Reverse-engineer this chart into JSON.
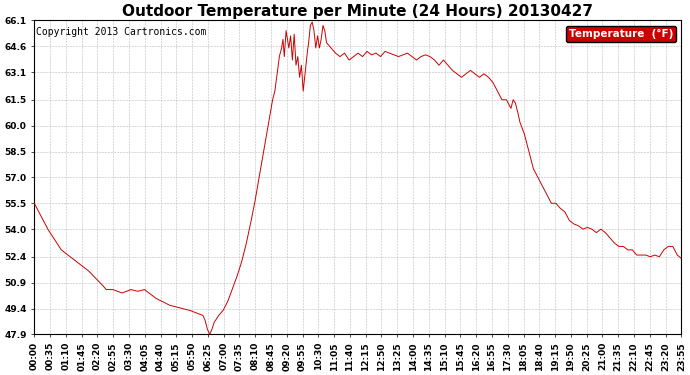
{
  "title": "Outdoor Temperature per Minute (24 Hours) 20130427",
  "copyright_text": "Copyright 2013 Cartronics.com",
  "legend_label": "Temperature  (°F)",
  "legend_bg": "#cc0000",
  "legend_text_color": "#ffffff",
  "line_color": "#cc0000",
  "background_color": "#ffffff",
  "grid_color": "#bbbbbb",
  "ylim": [
    47.9,
    66.1
  ],
  "yticks": [
    47.9,
    49.4,
    50.9,
    52.4,
    54.0,
    55.5,
    57.0,
    58.5,
    60.0,
    61.5,
    63.1,
    64.6,
    66.1
  ],
  "xtick_labels": [
    "00:00",
    "00:35",
    "01:10",
    "01:45",
    "02:20",
    "02:55",
    "03:30",
    "04:05",
    "04:40",
    "05:15",
    "05:50",
    "06:25",
    "07:00",
    "07:35",
    "08:10",
    "08:45",
    "09:20",
    "09:55",
    "10:30",
    "11:05",
    "11:40",
    "12:15",
    "12:50",
    "13:25",
    "14:00",
    "14:35",
    "15:10",
    "15:45",
    "16:20",
    "16:55",
    "17:30",
    "18:05",
    "18:40",
    "19:15",
    "19:50",
    "20:25",
    "21:00",
    "21:35",
    "22:10",
    "22:45",
    "23:20",
    "23:55"
  ],
  "title_fontsize": 11,
  "tick_fontsize": 6.5,
  "copyright_fontsize": 7,
  "control_points": [
    [
      0,
      55.5
    ],
    [
      30,
      54.0
    ],
    [
      60,
      52.8
    ],
    [
      90,
      52.2
    ],
    [
      120,
      51.6
    ],
    [
      150,
      50.8
    ],
    [
      160,
      50.5
    ],
    [
      175,
      50.5
    ],
    [
      195,
      50.3
    ],
    [
      215,
      50.5
    ],
    [
      230,
      50.4
    ],
    [
      245,
      50.5
    ],
    [
      255,
      50.3
    ],
    [
      270,
      50.0
    ],
    [
      285,
      49.8
    ],
    [
      300,
      49.6
    ],
    [
      315,
      49.5
    ],
    [
      330,
      49.4
    ],
    [
      345,
      49.3
    ],
    [
      355,
      49.2
    ],
    [
      365,
      49.1
    ],
    [
      375,
      49.0
    ],
    [
      380,
      48.7
    ],
    [
      385,
      48.2
    ],
    [
      390,
      47.9
    ],
    [
      395,
      48.2
    ],
    [
      400,
      48.6
    ],
    [
      410,
      49.0
    ],
    [
      420,
      49.3
    ],
    [
      430,
      49.8
    ],
    [
      440,
      50.5
    ],
    [
      450,
      51.2
    ],
    [
      460,
      52.0
    ],
    [
      470,
      53.0
    ],
    [
      480,
      54.2
    ],
    [
      490,
      55.5
    ],
    [
      500,
      57.0
    ],
    [
      510,
      58.5
    ],
    [
      520,
      60.0
    ],
    [
      530,
      61.5
    ],
    [
      535,
      62.0
    ],
    [
      540,
      63.0
    ],
    [
      545,
      64.0
    ],
    [
      550,
      64.5
    ],
    [
      553,
      65.0
    ],
    [
      556,
      64.0
    ],
    [
      560,
      65.5
    ],
    [
      563,
      65.0
    ],
    [
      566,
      64.5
    ],
    [
      570,
      65.2
    ],
    [
      574,
      63.8
    ],
    [
      578,
      65.3
    ],
    [
      582,
      63.5
    ],
    [
      586,
      64.0
    ],
    [
      590,
      62.8
    ],
    [
      594,
      63.5
    ],
    [
      598,
      62.0
    ],
    [
      602,
      63.0
    ],
    [
      606,
      64.0
    ],
    [
      610,
      64.8
    ],
    [
      614,
      65.8
    ],
    [
      618,
      66.0
    ],
    [
      622,
      65.5
    ],
    [
      626,
      64.5
    ],
    [
      630,
      65.2
    ],
    [
      634,
      64.5
    ],
    [
      638,
      65.0
    ],
    [
      642,
      65.8
    ],
    [
      646,
      65.5
    ],
    [
      650,
      64.8
    ],
    [
      660,
      64.5
    ],
    [
      670,
      64.2
    ],
    [
      680,
      64.0
    ],
    [
      690,
      64.2
    ],
    [
      700,
      63.8
    ],
    [
      710,
      64.0
    ],
    [
      720,
      64.2
    ],
    [
      730,
      64.0
    ],
    [
      740,
      64.3
    ],
    [
      750,
      64.1
    ],
    [
      760,
      64.2
    ],
    [
      770,
      64.0
    ],
    [
      780,
      64.3
    ],
    [
      790,
      64.2
    ],
    [
      800,
      64.1
    ],
    [
      810,
      64.0
    ],
    [
      820,
      64.1
    ],
    [
      830,
      64.2
    ],
    [
      840,
      64.0
    ],
    [
      850,
      63.8
    ],
    [
      860,
      64.0
    ],
    [
      870,
      64.1
    ],
    [
      880,
      64.0
    ],
    [
      890,
      63.8
    ],
    [
      900,
      63.5
    ],
    [
      910,
      63.8
    ],
    [
      920,
      63.5
    ],
    [
      930,
      63.2
    ],
    [
      940,
      63.0
    ],
    [
      950,
      62.8
    ],
    [
      960,
      63.0
    ],
    [
      970,
      63.2
    ],
    [
      980,
      63.0
    ],
    [
      990,
      62.8
    ],
    [
      1000,
      63.0
    ],
    [
      1010,
      62.8
    ],
    [
      1020,
      62.5
    ],
    [
      1030,
      62.0
    ],
    [
      1040,
      61.5
    ],
    [
      1050,
      61.5
    ],
    [
      1060,
      61.0
    ],
    [
      1065,
      61.5
    ],
    [
      1070,
      61.3
    ],
    [
      1075,
      60.8
    ],
    [
      1080,
      60.2
    ],
    [
      1090,
      59.5
    ],
    [
      1100,
      58.5
    ],
    [
      1110,
      57.5
    ],
    [
      1120,
      57.0
    ],
    [
      1130,
      56.5
    ],
    [
      1140,
      56.0
    ],
    [
      1150,
      55.5
    ],
    [
      1160,
      55.5
    ],
    [
      1170,
      55.2
    ],
    [
      1180,
      55.0
    ],
    [
      1190,
      54.5
    ],
    [
      1200,
      54.3
    ],
    [
      1210,
      54.2
    ],
    [
      1220,
      54.0
    ],
    [
      1230,
      54.1
    ],
    [
      1240,
      54.0
    ],
    [
      1250,
      53.8
    ],
    [
      1260,
      54.0
    ],
    [
      1270,
      53.8
    ],
    [
      1280,
      53.5
    ],
    [
      1290,
      53.2
    ],
    [
      1300,
      53.0
    ],
    [
      1310,
      53.0
    ],
    [
      1320,
      52.8
    ],
    [
      1330,
      52.8
    ],
    [
      1340,
      52.5
    ],
    [
      1350,
      52.5
    ],
    [
      1360,
      52.5
    ],
    [
      1370,
      52.4
    ],
    [
      1380,
      52.5
    ],
    [
      1390,
      52.4
    ],
    [
      1400,
      52.8
    ],
    [
      1410,
      53.0
    ],
    [
      1420,
      53.0
    ],
    [
      1430,
      52.5
    ],
    [
      1439,
      52.3
    ]
  ]
}
